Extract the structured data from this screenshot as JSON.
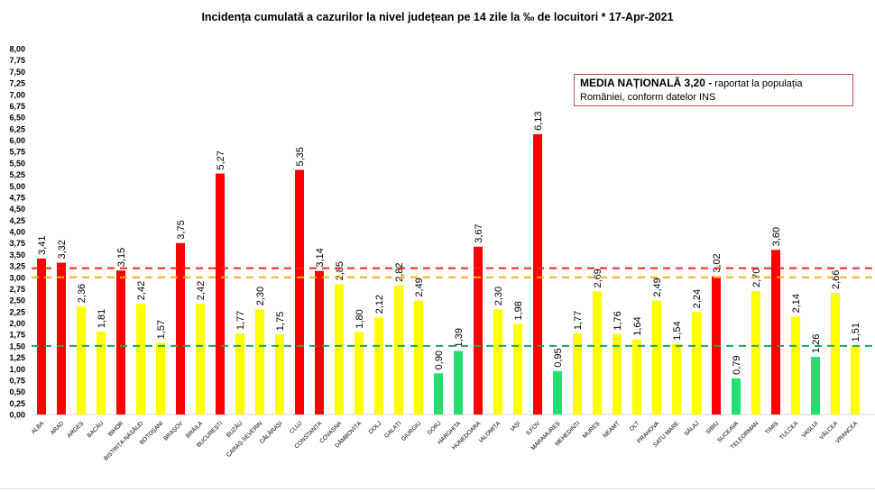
{
  "chart_data": {
    "type": "bar",
    "title": "Incidența cumulată a cazurilor la nivel județean pe 14 zile la ‰ de locuitori *   17-Apr-2021",
    "xlabel": "",
    "ylabel": "",
    "ylim": [
      0,
      8
    ],
    "ytick_step": 0.25,
    "grid": false,
    "categories": [
      "ALBA",
      "ARAD",
      "ARGEȘ",
      "BACĂU",
      "BIHOR",
      "BISTRIȚA-NĂSĂUD",
      "BOTOȘANI",
      "BRAȘOV",
      "BRĂILA",
      "BUCUREȘTI",
      "BUZĂU",
      "CARAȘ-SEVERIN",
      "CĂLĂRAȘI",
      "CLUJ",
      "CONSTANȚA",
      "COVASNA",
      "DÂMBOVIȚA",
      "DOLJ",
      "GALAȚI",
      "GIURGIU",
      "GORJ",
      "HARGHITA",
      "HUNEDOARA",
      "IALOMIȚA",
      "IAȘI",
      "ILFOV",
      "MARAMUREȘ",
      "MEHEDINȚI",
      "MUREȘ",
      "NEAMȚ",
      "OLT",
      "PRAHOVA",
      "SATU MARE",
      "SĂLAJ",
      "SIBIU",
      "SUCEAVA",
      "TELEORMAN",
      "TIMIȘ",
      "TULCEA",
      "VASLUI",
      "VÂLCEA",
      "VRANCEA"
    ],
    "values": [
      3.41,
      3.32,
      2.36,
      1.81,
      3.15,
      2.42,
      1.57,
      3.75,
      2.42,
      5.27,
      1.77,
      2.3,
      1.75,
      5.35,
      3.14,
      2.85,
      1.8,
      2.12,
      2.82,
      2.49,
      0.9,
      1.39,
      3.67,
      2.3,
      1.98,
      6.13,
      0.95,
      1.77,
      2.69,
      1.76,
      1.64,
      2.49,
      1.54,
      2.24,
      3.02,
      0.79,
      2.7,
      3.6,
      2.14,
      1.26,
      2.66,
      1.51
    ],
    "value_labels": [
      "3,41",
      "3,32",
      "2,36",
      "1,81",
      "3,15",
      "2,42",
      "1,57",
      "3,75",
      "2,42",
      "5,27",
      "1,77",
      "2,30",
      "1,75",
      "5,35",
      "3,14",
      "2,85",
      "1,80",
      "2,12",
      "2,82",
      "2,49",
      "0,90",
      "1,39",
      "3,67",
      "2,30",
      "1,98",
      "6,13",
      "0,95",
      "1,77",
      "2,69",
      "1,76",
      "1,64",
      "2,49",
      "1,54",
      "2,24",
      "3,02",
      "0,79",
      "2,70",
      "3,60",
      "2,14",
      "1,26",
      "2,66",
      "1,51"
    ],
    "reference_lines": [
      {
        "value": 3.2,
        "color": "#ff2020"
      },
      {
        "value": 3.0,
        "color": "#f0b020"
      },
      {
        "value": 1.5,
        "color": "#20a060"
      }
    ],
    "colors": {
      "high": "#ff0000",
      "medium": "#ffff00",
      "low": "#22e070"
    },
    "thresholds": {
      "high": 3.0,
      "low": 1.5
    },
    "annotation": {
      "bold": "MEDIA NAȚIONALĂ  3,20 -",
      "text": " raportat la populația României, conform datelor INS"
    }
  }
}
